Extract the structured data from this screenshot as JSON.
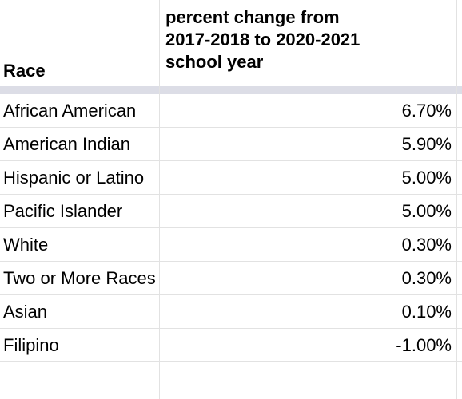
{
  "table": {
    "headers": {
      "race": "Race",
      "change_lines": [
        "percent change from",
        "2017-2018 to 2020-2021",
        "school year"
      ]
    },
    "rows": [
      {
        "race": "African American",
        "change": "6.70%"
      },
      {
        "race": "American Indian",
        "change": "5.90%"
      },
      {
        "race": "Hispanic or Latino",
        "change": "5.00%"
      },
      {
        "race": "Pacific Islander",
        "change": "5.00%"
      },
      {
        "race": "White",
        "change": "0.30%"
      },
      {
        "race": "Two or More Races",
        "change": "0.30%"
      },
      {
        "race": "Asian",
        "change": "0.10%"
      },
      {
        "race": "Filipino",
        "change": "-1.00%"
      }
    ]
  }
}
